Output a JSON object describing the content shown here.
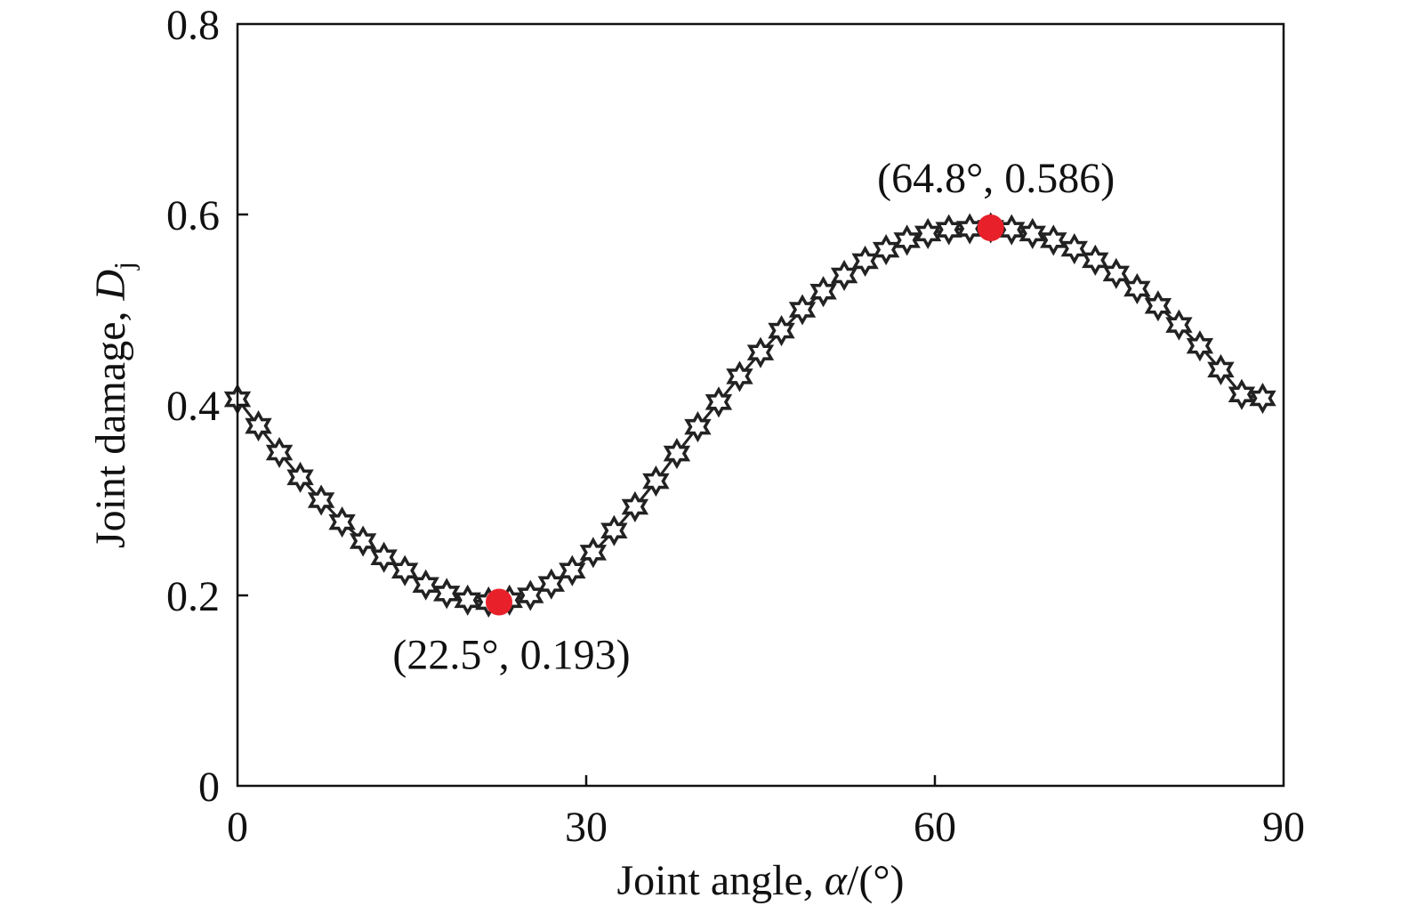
{
  "chart_data": {
    "type": "line",
    "title": "",
    "xlabel_text": "Joint angle, ",
    "xlabel_symbol": "α",
    "xlabel_unit": "/(°)",
    "ylabel_text": "Joint damage, ",
    "ylabel_symbol": "D",
    "ylabel_subscript": "j",
    "xlim": [
      0,
      90
    ],
    "ylim": [
      0,
      0.8
    ],
    "xticks": [
      0,
      30,
      60,
      90
    ],
    "yticks": [
      0,
      0.2,
      0.4,
      0.6,
      0.8
    ],
    "xtick_labels": [
      "0",
      "30",
      "60",
      "90"
    ],
    "ytick_labels": [
      "0",
      "0.2",
      "0.4",
      "0.6",
      "0.8"
    ],
    "grid": false,
    "legend": "none",
    "series": [
      {
        "marker": "hexagram-star",
        "color": "#222222",
        "x": [
          0,
          1.8,
          3.6,
          5.4,
          7.2,
          9,
          10.8,
          12.6,
          14.4,
          16.2,
          18,
          19.8,
          21.6,
          23.4,
          25.2,
          27,
          28.8,
          30.6,
          32.4,
          34.2,
          36,
          37.8,
          39.6,
          41.4,
          43.2,
          45,
          46.8,
          48.6,
          50.4,
          52.2,
          54,
          55.8,
          57.6,
          59.4,
          61.2,
          63,
          64.8,
          66.6,
          68.4,
          70.2,
          72,
          73.8,
          75.6,
          77.4,
          79.2,
          81,
          82.8,
          84.6,
          86.4,
          88.2
        ],
        "y": [
          0.406,
          0.378,
          0.35,
          0.324,
          0.3,
          0.277,
          0.257,
          0.24,
          0.226,
          0.211,
          0.202,
          0.195,
          0.193,
          0.195,
          0.2,
          0.212,
          0.226,
          0.245,
          0.268,
          0.293,
          0.32,
          0.349,
          0.377,
          0.403,
          0.43,
          0.455,
          0.478,
          0.5,
          0.519,
          0.536,
          0.551,
          0.563,
          0.573,
          0.58,
          0.584,
          0.585,
          0.586,
          0.584,
          0.58,
          0.573,
          0.564,
          0.552,
          0.538,
          0.522,
          0.504,
          0.484,
          0.462,
          0.437,
          0.411,
          0.407
        ]
      }
    ],
    "highlights": [
      {
        "x": 22.5,
        "y": 0.193,
        "color": "#e8202a",
        "label": "(22.5°, 0.193)",
        "label_side": "below"
      },
      {
        "x": 64.8,
        "y": 0.586,
        "color": "#e8202a",
        "label": "(64.8°, 0.586)",
        "label_side": "above"
      }
    ]
  }
}
